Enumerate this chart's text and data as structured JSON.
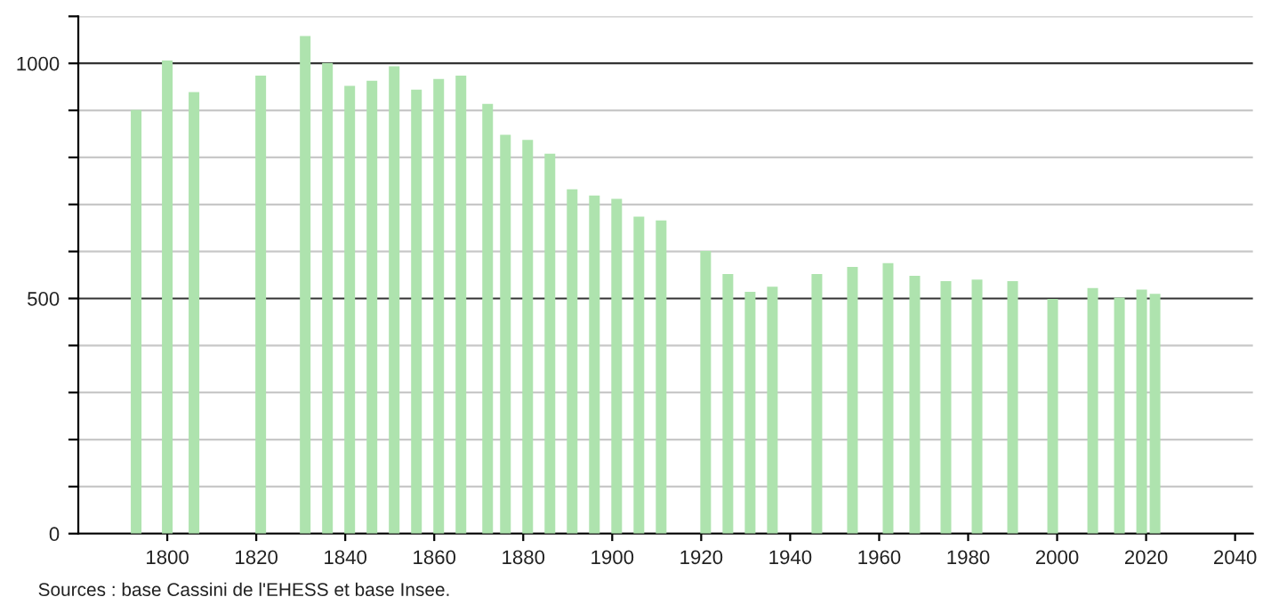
{
  "chart_data": {
    "type": "bar",
    "color": "#aee3ae",
    "x": [
      1793,
      1800,
      1806,
      1821,
      1831,
      1836,
      1841,
      1846,
      1851,
      1856,
      1861,
      1866,
      1872,
      1876,
      1881,
      1886,
      1891,
      1896,
      1901,
      1906,
      1911,
      1921,
      1926,
      1931,
      1936,
      1946,
      1954,
      1962,
      1968,
      1975,
      1982,
      1990,
      1999,
      2008,
      2014,
      2019,
      2022
    ],
    "values": [
      901,
      1006,
      939,
      974,
      1058,
      1001,
      952,
      963,
      994,
      944,
      967,
      974,
      914,
      848,
      837,
      808,
      732,
      719,
      712,
      674,
      666,
      601,
      552,
      514,
      525,
      552,
      567,
      575,
      548,
      537,
      540,
      537,
      499,
      522,
      502,
      519,
      510
    ],
    "xlim": [
      1780,
      2044
    ],
    "xticks": [
      1800,
      1820,
      1840,
      1860,
      1880,
      1900,
      1920,
      1940,
      1960,
      1980,
      2000,
      2020,
      2040
    ],
    "ylim": [
      0,
      1100
    ],
    "yticks": [
      0,
      {
        "value": 100,
        "label": null
      },
      {
        "value": 200,
        "label": null
      },
      {
        "value": 300,
        "label": null
      },
      {
        "value": 400,
        "label": null
      },
      500,
      {
        "value": 600,
        "label": null
      },
      {
        "value": 700,
        "label": null
      },
      {
        "value": 800,
        "label": null
      },
      {
        "value": 900,
        "label": null
      },
      1000,
      {
        "value": 1100,
        "label": null
      }
    ],
    "grid": "y",
    "annotations": [
      "Sources : base Cassini de l'EHESS et base Insee."
    ]
  }
}
